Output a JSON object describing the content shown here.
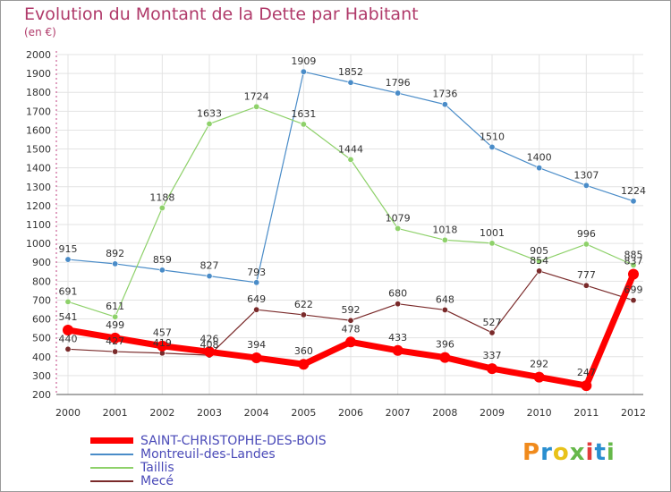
{
  "header": {
    "title": "Evolution du Montant de la Dette par Habitant",
    "subtitle": "(en €)"
  },
  "logo": {
    "text": "Proxiti",
    "colors": [
      "#f08a1c",
      "#2a8fd0",
      "#e8c21a",
      "#66b84a",
      "#e23b3b",
      "#2a8fd0",
      "#66b84a"
    ]
  },
  "chart_data": {
    "type": "line",
    "title": "Evolution du Montant de la Dette par Habitant",
    "subtitle": "(en €)",
    "x": [
      "2000",
      "2001",
      "2002",
      "2003",
      "2004",
      "2005",
      "2006",
      "2007",
      "2008",
      "2009",
      "2010",
      "2011",
      "2012"
    ],
    "ylim": [
      200,
      2000
    ],
    "yticks": [
      200,
      300,
      400,
      500,
      600,
      700,
      800,
      900,
      1000,
      1100,
      1200,
      1300,
      1400,
      1500,
      1600,
      1700,
      1800,
      1900,
      2000
    ],
    "grid": true,
    "legend_position": "bottom-left",
    "series": [
      {
        "name": "SAINT-CHRISTOPHE-DES-BOIS",
        "color": "#ff0000",
        "values": [
          541,
          499,
          457,
          426,
          394,
          360,
          478,
          433,
          396,
          337,
          292,
          247,
          837
        ],
        "labels": [
          "541",
          "499",
          "457",
          "426",
          "394",
          "360",
          "478",
          "433",
          "396",
          "337",
          "292",
          "247",
          "837"
        ]
      },
      {
        "name": "Montreuil-des-Landes",
        "color": "#4a8cc8",
        "values": [
          915,
          892,
          859,
          827,
          793,
          1909,
          1852,
          1796,
          1736,
          1510,
          1400,
          1307,
          1224
        ],
        "labels": [
          "915",
          "892",
          "859",
          "827",
          "793",
          "1909",
          "1852",
          "1796",
          "1736",
          "1510",
          "1400",
          "1307",
          "1224"
        ]
      },
      {
        "name": "Taillis",
        "color": "#8ed16a",
        "values": [
          691,
          611,
          1188,
          1633,
          1724,
          1631,
          1444,
          1079,
          1018,
          1001,
          905,
          996,
          885
        ],
        "labels": [
          "691",
          "611",
          "1188",
          "1633",
          "1724",
          "1631",
          "1444",
          "1079",
          "1018",
          "1001",
          "905",
          "996",
          "885"
        ]
      },
      {
        "name": "Mecé",
        "color": "#7a2a2a",
        "values": [
          440,
          427,
          419,
          408,
          649,
          622,
          592,
          680,
          648,
          527,
          854,
          777,
          699
        ],
        "labels": [
          "440",
          "427",
          "419",
          "408",
          "649",
          "622",
          "592",
          "680",
          "648",
          "527",
          "854",
          "777",
          "699"
        ]
      }
    ]
  }
}
